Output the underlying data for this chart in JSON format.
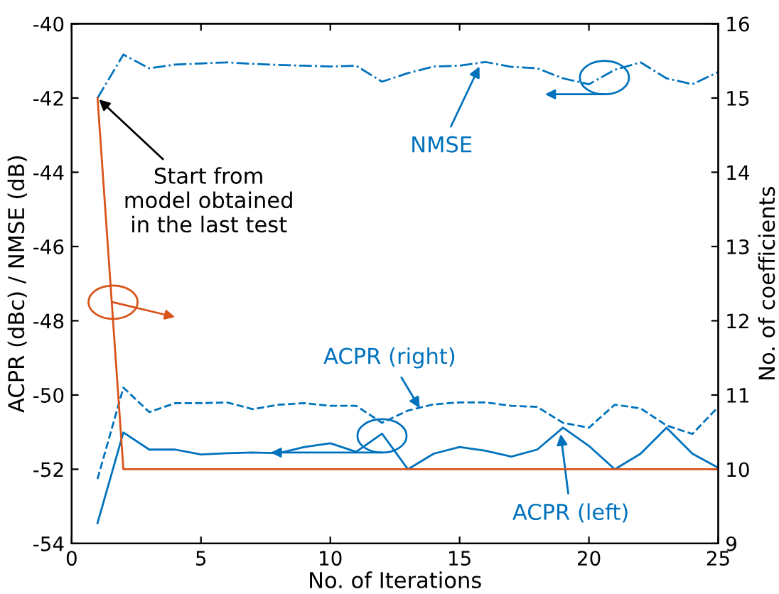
{
  "chart_data": {
    "type": "line",
    "xlabel": "No. of Iterations",
    "ylabel": "ACPR (dBc) / NMSE (dB)",
    "y2label": "No. of coefficients",
    "x": [
      1,
      2,
      3,
      4,
      5,
      6,
      7,
      8,
      9,
      10,
      11,
      12,
      13,
      14,
      15,
      16,
      17,
      18,
      19,
      20,
      21,
      22,
      23,
      24,
      25
    ],
    "series": [
      {
        "color": "#0072bd",
        "line_style": "dashdot",
        "values": [
          -42,
          -40.83,
          -41.2,
          -41.1,
          -41.07,
          -41.04,
          -41.08,
          -41.11,
          -41.13,
          -41.15,
          -41.13,
          -41.56,
          -41.33,
          -41.15,
          -41.13,
          -41.03,
          -41.16,
          -41.2,
          -41.47,
          -41.63,
          -41.24,
          -41.04,
          -41.47,
          -41.63,
          -41.3
        ]
      },
      {
        "color": "#0072bd",
        "line_style": "dashed",
        "values": [
          -52.26,
          -49.8,
          -50.46,
          -50.22,
          -50.22,
          -50.2,
          -50.38,
          -50.26,
          -50.22,
          -50.29,
          -50.29,
          -50.75,
          -50.42,
          -50.25,
          -50.2,
          -50.2,
          -50.29,
          -50.32,
          -50.75,
          -50.88,
          -50.26,
          -50.36,
          -50.82,
          -51.05,
          -50.32
        ]
      },
      {
        "color": "#0072bd",
        "line_style": "solid",
        "values": [
          -53.45,
          -51.01,
          -51.47,
          -51.47,
          -51.6,
          -51.57,
          -51.55,
          -51.57,
          -51.4,
          -51.3,
          -51.53,
          -51.04,
          -52,
          -51.58,
          -51.4,
          -51.5,
          -51.66,
          -51.47,
          -50.88,
          -51.37,
          -52,
          -51.58,
          -50.88,
          -51.58,
          -51.96
        ]
      },
      {
        "color": "#d95319",
        "line_style": "solid",
        "axis": "y2",
        "values": [
          15,
          10,
          10,
          10,
          10,
          10,
          10,
          10,
          10,
          10,
          10,
          10,
          10,
          10,
          10,
          10,
          10,
          10,
          10,
          10,
          10,
          10,
          10,
          10,
          10
        ]
      }
    ],
    "xlim": [
      0,
      25
    ],
    "xticks": [
      0,
      5,
      10,
      15,
      20,
      25
    ],
    "ylim": [
      -54,
      -40
    ],
    "yticks": [
      -54,
      -52,
      -50,
      -48,
      -46,
      -44,
      -42,
      -40
    ],
    "y2lim": [
      9,
      16
    ],
    "y2ticks": [
      9,
      10,
      11,
      12,
      13,
      14,
      15,
      16
    ],
    "grid": false,
    "legend": false,
    "marker": "none",
    "annotations": [
      {
        "text": "Start from\nmodel obtained\nin the last test",
        "x": 1,
        "y": -42
      },
      {
        "text": "NMSE",
        "x": 15.8,
        "y": -41.1
      },
      {
        "text": "ACPR (right)",
        "x": 13.5,
        "y": -50.4
      },
      {
        "text": "ACPR (left)",
        "x": 18.9,
        "y": -51.0
      }
    ]
  }
}
